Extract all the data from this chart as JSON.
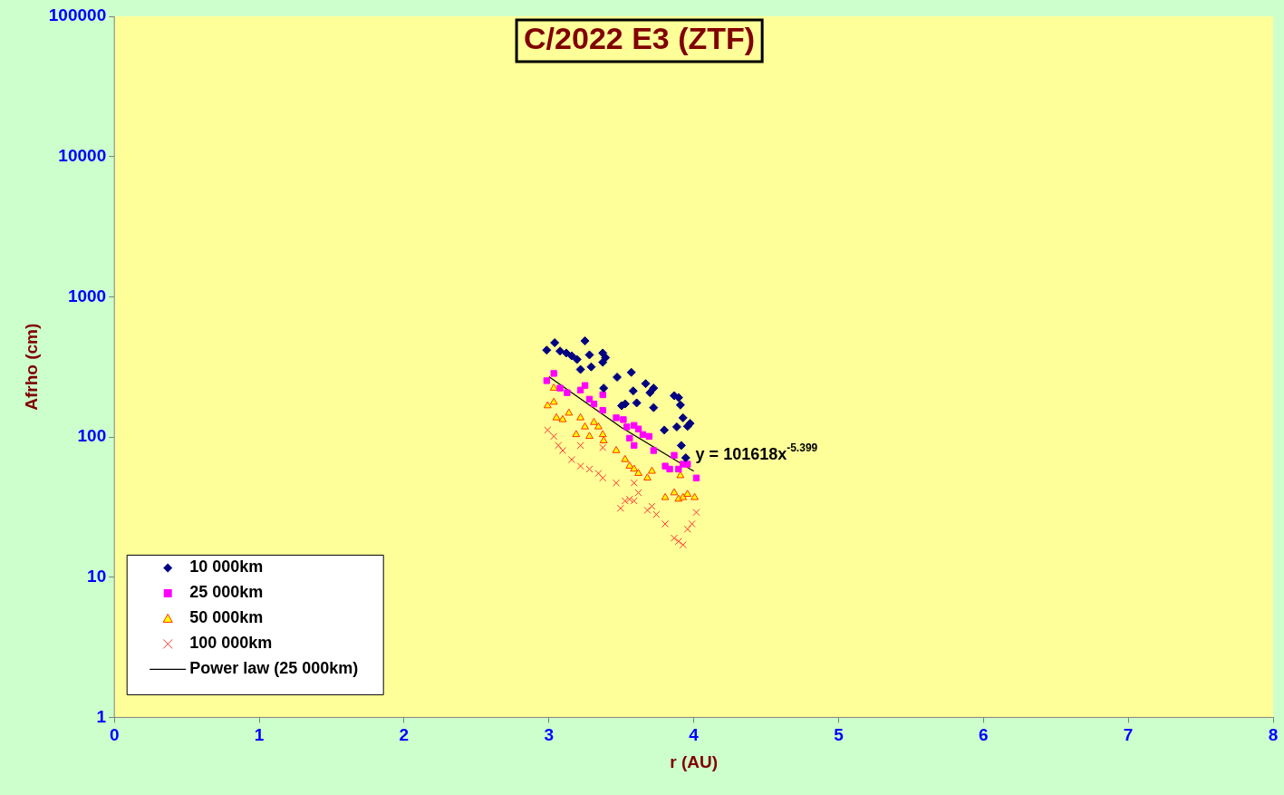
{
  "chart_data": {
    "type": "scatter",
    "title": "C/2022 E3 (ZTF)",
    "xlabel": "r (AU)",
    "ylabel": "Afrho (cm)",
    "log": "y",
    "grid": false,
    "legend": "bottom left",
    "xlim": [
      0,
      8
    ],
    "xticks": [
      0,
      1,
      2,
      3,
      4,
      5,
      6,
      7,
      8
    ],
    "ylim": [
      1,
      100000
    ],
    "yticks": [
      1,
      10,
      100,
      1000,
      10000,
      100000
    ],
    "annotations": [
      "y = 101618x$^{-5.399}$"
    ],
    "series": [
      {
        "name": "10 000km",
        "color": "#000080",
        "marker": "diamond",
        "x": [
          2.985,
          3.04,
          3.077,
          3.12,
          3.157,
          3.194,
          3.249,
          3.218,
          3.28,
          3.292,
          3.372,
          3.372,
          3.391,
          3.378,
          3.471,
          3.502,
          3.526,
          3.569,
          3.582,
          3.606,
          3.668,
          3.698,
          3.723,
          3.723,
          3.797,
          3.865,
          3.895,
          3.908,
          3.883,
          3.926,
          3.957,
          3.975,
          3.914,
          3.945
        ],
        "values": [
          416,
          470,
          410,
          397,
          379,
          357,
          484,
          303,
          385,
          316,
          397,
          341,
          368,
          223,
          267,
          167,
          172,
          289,
          213,
          175,
          240,
          207,
          223,
          162,
          112,
          197,
          191,
          169,
          118,
          137,
          119,
          125,
          87,
          71
        ]
      },
      {
        "name": "25 000km",
        "color": "#ff00ff",
        "marker": "square",
        "x": [
          2.985,
          3.034,
          3.077,
          3.126,
          3.218,
          3.249,
          3.28,
          3.311,
          3.372,
          3.372,
          3.465,
          3.514,
          3.538,
          3.588,
          3.618,
          3.649,
          3.692,
          3.557,
          3.588,
          3.723,
          3.803,
          3.865,
          3.834,
          3.895,
          3.926,
          3.957,
          4.018
        ],
        "values": [
          252,
          284,
          223,
          207,
          216,
          233,
          186,
          172,
          200,
          155,
          137,
          133,
          118,
          121,
          114,
          104,
          101,
          98,
          87,
          80,
          62,
          74,
          59,
          59,
          64,
          64,
          51
        ]
      },
      {
        "name": "50 000km",
        "color": "#ffff00",
        "marker": "triangle",
        "x": [
          2.991,
          3.034,
          3.052,
          3.095,
          3.138,
          3.218,
          3.249,
          3.28,
          3.342,
          3.372,
          3.378,
          3.465,
          3.526,
          3.557,
          3.588,
          3.618,
          3.68,
          3.711,
          3.803,
          3.865,
          3.895,
          3.926,
          3.957,
          4.006,
          3.908,
          3.034,
          3.188,
          3.311
        ],
        "values": [
          167,
          177,
          137,
          133,
          148,
          137,
          118,
          101,
          118,
          104,
          94,
          80,
          69,
          62,
          59,
          55,
          51,
          57,
          37,
          40,
          36,
          37,
          39,
          37,
          53,
          223,
          104,
          127
        ]
      },
      {
        "name": "100 000km",
        "color": "#ff3333",
        "marker": "cross",
        "x": [
          2.991,
          3.034,
          3.065,
          3.095,
          3.157,
          3.218,
          3.28,
          3.342,
          3.372,
          3.495,
          3.526,
          3.557,
          3.588,
          3.618,
          3.68,
          3.711,
          3.742,
          3.803,
          3.865,
          3.895,
          3.926,
          3.957,
          3.988,
          4.018,
          3.218,
          3.372,
          3.465,
          3.588
        ],
        "values": [
          112,
          101,
          87,
          80,
          69,
          62,
          59,
          55,
          51,
          31,
          35,
          36,
          35,
          40,
          30,
          32,
          28,
          24,
          19,
          18,
          17,
          22,
          24,
          29,
          87,
          84,
          47,
          47
        ]
      },
      {
        "name": "Power law (25 000km)",
        "type": "line",
        "color": "#000000",
        "marker": "none",
        "line_style": "solid",
        "x": [
          3,
          3.5,
          4
        ],
        "values": [
          269,
          117,
          57
        ]
      }
    ]
  }
}
